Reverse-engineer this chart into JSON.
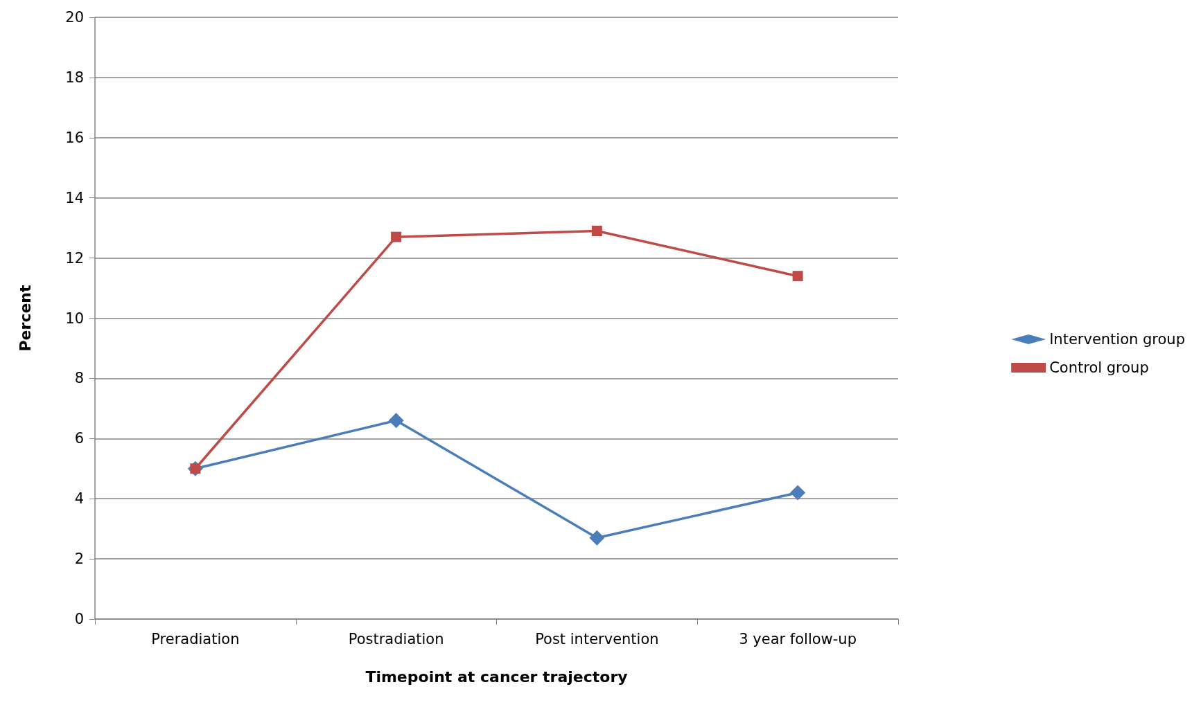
{
  "chart_data": {
    "type": "line",
    "xlabel": "Timepoint at cancer trajectory",
    "ylabel": "Percent",
    "categories": [
      "Preradiation",
      "Postradiation",
      "Post intervention",
      "3 year follow-up"
    ],
    "series": [
      {
        "name": "Intervention group",
        "color": "#4a7ebb",
        "marker": "diamond",
        "values": [
          5.0,
          6.6,
          2.7,
          4.2
        ]
      },
      {
        "name": "Control group",
        "color": "#be4b48",
        "marker": "square",
        "values": [
          5.0,
          12.7,
          12.9,
          11.4
        ]
      }
    ],
    "ylim": [
      0,
      20
    ],
    "yticks": [
      0,
      2,
      4,
      6,
      8,
      10,
      12,
      14,
      16,
      18,
      20
    ],
    "grid": "y",
    "legend": "right",
    "line_style": "solid"
  }
}
